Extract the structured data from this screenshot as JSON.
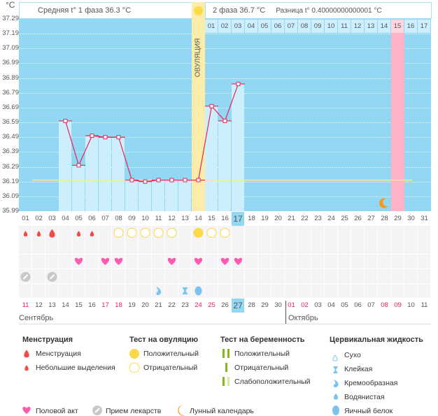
{
  "unit": "°C",
  "header": {
    "phase1": "Средняя t° 1 фаза 36.3 °C",
    "phase2": "2 фаза 36.7 °C",
    "diff": "Разница t° 0.40000000000001 °C",
    "ovulation_label": "ОВУЛЯЦИЯ"
  },
  "chart_data": {
    "type": "line",
    "ylabels": [
      "37.29",
      "37.19",
      "37.09",
      "36.99",
      "36.89",
      "36.79",
      "36.69",
      "36.59",
      "36.49",
      "36.39",
      "36.29",
      "36.19",
      "36.09",
      "35.99"
    ],
    "ylim": [
      35.99,
      37.29
    ],
    "x": [
      "01",
      "02",
      "03",
      "04",
      "05",
      "06",
      "07",
      "08",
      "09",
      "10",
      "11",
      "12",
      "13",
      "14",
      "15",
      "16",
      "17",
      "18",
      "19",
      "20",
      "21",
      "22",
      "23",
      "24",
      "25",
      "26",
      "27",
      "28",
      "29",
      "30",
      "31"
    ],
    "temps": [
      null,
      null,
      null,
      36.6,
      36.3,
      36.5,
      36.49,
      36.49,
      36.2,
      36.19,
      36.2,
      36.2,
      36.2,
      36.2,
      36.7,
      36.6,
      36.85,
      null,
      null,
      null,
      null,
      null,
      null,
      null,
      null,
      null,
      null,
      null,
      null,
      null,
      null
    ],
    "coverline": 36.2,
    "ovulation_day": 14,
    "expected_period_day": 29,
    "today_day": 17,
    "moon_day": 28,
    "phase2_days": [
      "01",
      "02",
      "03",
      "04",
      "05",
      "06",
      "07",
      "08",
      "09",
      "10",
      "11",
      "12",
      "13",
      "14",
      "15",
      "16",
      "17"
    ],
    "menstruation": {
      "1": "small",
      "2": "small",
      "3": "large",
      "5": "small",
      "6": "small"
    },
    "ovulation_test": {
      "8": "neg",
      "9": "neg",
      "10": "neg",
      "11": "neg",
      "12": "neg",
      "14": "pos",
      "15": "neg",
      "16": "neg"
    },
    "intercourse": [
      5,
      7,
      8,
      12,
      14,
      16,
      17
    ],
    "medication": [
      1,
      3
    ],
    "cervical_fluid": {
      "11": "creamy",
      "13": "sticky",
      "14": "eggwhite"
    },
    "dates": [
      "11",
      "12",
      "13",
      "14",
      "15",
      "16",
      "17",
      "18",
      "19",
      "20",
      "21",
      "22",
      "23",
      "24",
      "25",
      "26",
      "27",
      "28",
      "29",
      "30",
      "01",
      "02",
      "03",
      "04",
      "05",
      "06",
      "07",
      "08",
      "09",
      "10",
      "11"
    ],
    "red_dates": [
      1,
      7,
      8,
      14,
      15,
      21,
      22,
      28,
      29
    ],
    "months": [
      "Сентябрь",
      "Октябрь"
    ]
  },
  "legend": {
    "menstruation": {
      "title": "Менструация",
      "items": [
        "Менструация",
        "Небольшие выделения"
      ]
    },
    "ovulation_test": {
      "title": "Тест на овуляцию",
      "items": [
        "Положительный",
        "Отрицательный"
      ]
    },
    "pregnancy_test": {
      "title": "Тест на беременность",
      "items": [
        "Положительный",
        "Отрицательный",
        "Слабоположительный"
      ]
    },
    "cervical": {
      "title": "Цервикальная жидкость",
      "items": [
        "Сухо",
        "Клейкая",
        "Кремообразная",
        "Водянистая",
        "Яичный белок"
      ]
    },
    "bottom": [
      "Половой акт",
      "Прием лекарств",
      "Лунный календарь"
    ]
  },
  "colors": {
    "sky": "#93d8f3",
    "bar": "#cdeefc",
    "ovulation": "#fcecaa",
    "period": "#ffb3c6",
    "line": "#e8245a",
    "coverline": "#f9e79f",
    "drop": "#f24b4b",
    "sun": "#fcd94a",
    "heart": "#ff5cb0",
    "pill": "#c8c8c8",
    "fluid": "#7cc4ef",
    "moon": "#f39a1c",
    "test": "#86b817"
  }
}
